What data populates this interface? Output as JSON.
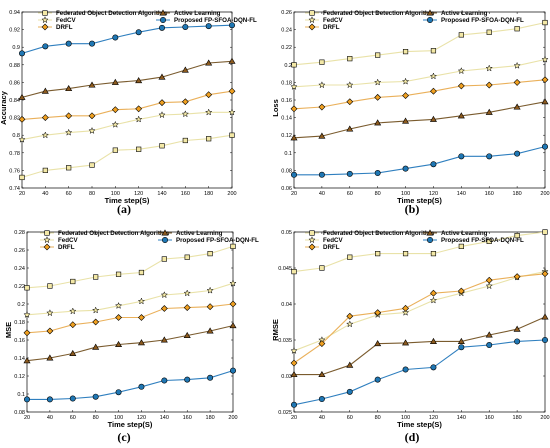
{
  "legend_labels": [
    "Federated Object Detection Algorithm",
    "Active Learning",
    "FedCV",
    "Proposed FP-SFOA-DQN-FL",
    "DRFL"
  ],
  "colors": {
    "Federated Object Detection Algorithm": "#f3e8a6",
    "Active Learning": "#8c5a1e",
    "FedCV": "#f3e8a6",
    "Proposed FP-SFOA-DQN-FL": "#1f77b4",
    "DRFL": "#f0a020",
    "line_fed": "#e9e2a8",
    "line_active": "#7a5b2e",
    "line_fedcv": "#e9e2a8",
    "line_proposed": "#2f7fbf",
    "line_drfl": "#eab05a"
  },
  "chart_data": [
    {
      "type": "line",
      "panel_label": "(a)",
      "xlabel": "Time step(S)",
      "ylabel": "Accuracy",
      "x": [
        20,
        40,
        60,
        80,
        100,
        120,
        140,
        160,
        180,
        200
      ],
      "xticks": [
        "20",
        "40",
        "60",
        "80",
        "100",
        "120",
        "140",
        "160",
        "180",
        "200"
      ],
      "ylim": [
        0.74,
        0.94
      ],
      "yticks": [
        "0.74",
        "0.76",
        "0.78",
        "0.8",
        "0.82",
        "0.84",
        "0.86",
        "0.88",
        "0.9",
        "0.92",
        "0.94"
      ],
      "grid": false,
      "legend": "top",
      "series": [
        {
          "name": "Federated Object Detection Algorithm",
          "marker": "square",
          "values": [
            0.752,
            0.76,
            0.763,
            0.766,
            0.783,
            0.784,
            0.788,
            0.794,
            0.796,
            0.8
          ]
        },
        {
          "name": "FedCV",
          "marker": "star",
          "values": [
            0.795,
            0.8,
            0.803,
            0.805,
            0.812,
            0.818,
            0.823,
            0.824,
            0.826,
            0.826
          ]
        },
        {
          "name": "DRFL",
          "marker": "diamond",
          "values": [
            0.818,
            0.82,
            0.822,
            0.822,
            0.829,
            0.83,
            0.837,
            0.838,
            0.846,
            0.85
          ]
        },
        {
          "name": "Active Learning",
          "marker": "triangle",
          "values": [
            0.843,
            0.85,
            0.853,
            0.857,
            0.86,
            0.862,
            0.866,
            0.874,
            0.882,
            0.884
          ]
        },
        {
          "name": "Proposed FP-SFOA-DQN-FL",
          "marker": "circle",
          "values": [
            0.893,
            0.901,
            0.904,
            0.904,
            0.911,
            0.917,
            0.922,
            0.923,
            0.924,
            0.925
          ]
        }
      ]
    },
    {
      "type": "line",
      "panel_label": "(b)",
      "xlabel": "Time step(S)",
      "ylabel": "Loss",
      "x": [
        20,
        40,
        60,
        80,
        100,
        120,
        140,
        160,
        180,
        200
      ],
      "xticks": [
        "20",
        "40",
        "60",
        "80",
        "100",
        "120",
        "140",
        "160",
        "180",
        "200"
      ],
      "ylim": [
        0.06,
        0.26
      ],
      "yticks": [
        "0.06",
        "0.08",
        "0.1",
        "0.12",
        "0.14",
        "0.16",
        "0.18",
        "0.2",
        "0.22",
        "0.24",
        "0.26"
      ],
      "grid": false,
      "legend": "top",
      "series": [
        {
          "name": "Federated Object Detection Algorithm",
          "marker": "square",
          "values": [
            0.2,
            0.203,
            0.207,
            0.211,
            0.215,
            0.216,
            0.234,
            0.237,
            0.241,
            0.248
          ]
        },
        {
          "name": "FedCV",
          "marker": "star",
          "values": [
            0.175,
            0.177,
            0.177,
            0.18,
            0.181,
            0.187,
            0.193,
            0.196,
            0.199,
            0.206
          ]
        },
        {
          "name": "DRFL",
          "marker": "diamond",
          "values": [
            0.15,
            0.152,
            0.158,
            0.163,
            0.165,
            0.17,
            0.176,
            0.177,
            0.18,
            0.183
          ]
        },
        {
          "name": "Active Learning",
          "marker": "triangle",
          "values": [
            0.117,
            0.119,
            0.127,
            0.134,
            0.136,
            0.138,
            0.142,
            0.146,
            0.152,
            0.158
          ]
        },
        {
          "name": "Proposed FP-SFOA-DQN-FL",
          "marker": "circle",
          "values": [
            0.075,
            0.075,
            0.076,
            0.077,
            0.082,
            0.087,
            0.096,
            0.096,
            0.099,
            0.107
          ]
        }
      ]
    },
    {
      "type": "line",
      "panel_label": "(c)",
      "xlabel": "Time step(S)",
      "ylabel": "MSE",
      "x": [
        20,
        40,
        60,
        80,
        100,
        120,
        140,
        160,
        180,
        200
      ],
      "xticks": [
        "20",
        "40",
        "60",
        "80",
        "100",
        "120",
        "140",
        "160",
        "180",
        "200"
      ],
      "ylim": [
        0.08,
        0.28
      ],
      "yticks": [
        "0.08",
        "0.1",
        "0.12",
        "0.14",
        "0.16",
        "0.18",
        "0.2",
        "0.22",
        "0.24",
        "0.26",
        "0.28"
      ],
      "grid": false,
      "legend": "top",
      "series": [
        {
          "name": "Federated Object Detection Algorithm",
          "marker": "square",
          "values": [
            0.218,
            0.22,
            0.225,
            0.23,
            0.233,
            0.235,
            0.25,
            0.252,
            0.256,
            0.264
          ]
        },
        {
          "name": "FedCV",
          "marker": "star",
          "values": [
            0.188,
            0.19,
            0.192,
            0.193,
            0.198,
            0.203,
            0.21,
            0.212,
            0.215,
            0.223
          ]
        },
        {
          "name": "DRFL",
          "marker": "diamond",
          "values": [
            0.168,
            0.17,
            0.177,
            0.18,
            0.185,
            0.185,
            0.195,
            0.196,
            0.197,
            0.2
          ]
        },
        {
          "name": "Active Learning",
          "marker": "triangle",
          "values": [
            0.137,
            0.14,
            0.145,
            0.152,
            0.155,
            0.157,
            0.16,
            0.165,
            0.17,
            0.176
          ]
        },
        {
          "name": "Proposed FP-SFOA-DQN-FL",
          "marker": "circle",
          "values": [
            0.094,
            0.094,
            0.095,
            0.097,
            0.102,
            0.108,
            0.115,
            0.116,
            0.118,
            0.126
          ]
        }
      ]
    },
    {
      "type": "line",
      "panel_label": "(d)",
      "xlabel": "Time step(S)",
      "ylabel": "RMSE",
      "x": [
        20,
        40,
        60,
        80,
        100,
        120,
        140,
        160,
        180,
        200
      ],
      "xticks": [
        "20",
        "40",
        "60",
        "80",
        "100",
        "120",
        "140",
        "160",
        "180",
        "200"
      ],
      "ylim": [
        0.025,
        0.05
      ],
      "yticks": [
        "0.025",
        "0.03",
        "0.035",
        "0.04",
        "0.045",
        "0.05"
      ],
      "grid": false,
      "legend": "top",
      "series": [
        {
          "name": "Federated Object Detection Algorithm",
          "marker": "square",
          "values": [
            0.0445,
            0.045,
            0.0465,
            0.047,
            0.047,
            0.047,
            0.048,
            0.0487,
            0.0495,
            0.05
          ]
        },
        {
          "name": "FedCV",
          "marker": "star",
          "values": [
            0.0335,
            0.035,
            0.0372,
            0.0385,
            0.0388,
            0.0405,
            0.0415,
            0.0425,
            0.0437,
            0.0445
          ]
        },
        {
          "name": "DRFL",
          "marker": "diamond",
          "values": [
            0.0318,
            0.0345,
            0.0383,
            0.0388,
            0.0394,
            0.0415,
            0.0418,
            0.0433,
            0.0438,
            0.0442
          ]
        },
        {
          "name": "Active Learning",
          "marker": "triangle",
          "values": [
            0.0302,
            0.0302,
            0.0315,
            0.0345,
            0.0346,
            0.0348,
            0.0348,
            0.0357,
            0.0365,
            0.0382
          ]
        },
        {
          "name": "Proposed FP-SFOA-DQN-FL",
          "marker": "circle",
          "values": [
            0.026,
            0.0268,
            0.0278,
            0.0295,
            0.0309,
            0.0312,
            0.034,
            0.0343,
            0.0348,
            0.035
          ]
        }
      ]
    }
  ]
}
